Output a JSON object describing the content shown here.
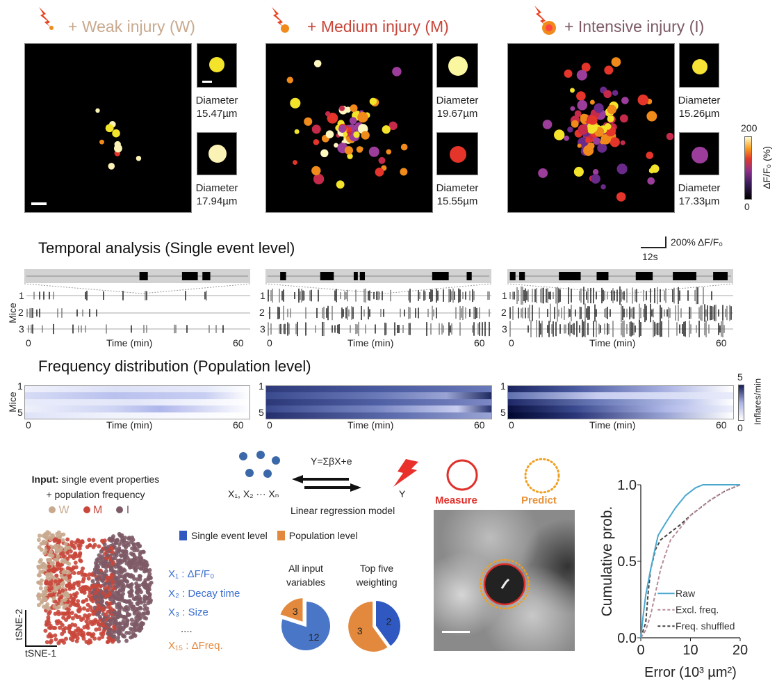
{
  "injuries": [
    {
      "label": "+ Weak injury (W)",
      "color": "#c8a98e",
      "thumbs": [
        {
          "caption": "Diameter",
          "value": "15.47µm"
        },
        {
          "caption": "Diameter",
          "value": "17.94µm"
        }
      ]
    },
    {
      "label": "+ Medium injury (M)",
      "color": "#c9463a",
      "thumbs": [
        {
          "caption": "Diameter",
          "value": "19.67µm"
        },
        {
          "caption": "Diameter",
          "value": "15.55µm"
        }
      ]
    },
    {
      "label": "+ Intensive injury (I)",
      "color": "#7d5a66",
      "thumbs": [
        {
          "caption": "Diameter",
          "value": "15.26µm"
        },
        {
          "caption": "Diameter",
          "value": "17.33µm"
        }
      ]
    }
  ],
  "colorbar_top": {
    "max": "200",
    "min": "0",
    "label": "ΔF/F₀ (%)"
  },
  "temporal": {
    "title": "Temporal analysis (Single event level)",
    "scale_y": "200% ΔF/F₀",
    "scale_x": "12s",
    "ylabel": "Mice",
    "rows": [
      "1",
      "2",
      "3"
    ],
    "x_start": "0",
    "x_label": "Time (min)",
    "x_end": "60"
  },
  "frequency": {
    "title": "Frequency distribution (Population level)",
    "ylabel": "Mice",
    "rows": [
      "1",
      "5"
    ],
    "x_start": "0",
    "x_label": "Time (min)",
    "x_end": "60",
    "colorbar": {
      "max": "5",
      "min": "0",
      "label": "Inflares/min"
    }
  },
  "tsne": {
    "input_bold": "Input:",
    "input_rest": " single event properties",
    "input_line2": "+ population frequency",
    "legend": [
      {
        "label": "W",
        "color": "#c8a98e"
      },
      {
        "label": "M",
        "color": "#c9463a"
      },
      {
        "label": "I",
        "color": "#7d5a66"
      }
    ],
    "xlabel": "tSNE-1",
    "ylabel": "tSNE-2"
  },
  "regression": {
    "equation": "Y=ΣβX+e",
    "inputs": "X₁, X₂ ··· Xₙ",
    "output": "Y",
    "caption": "Linear regression model",
    "legend": [
      {
        "label": "Single event level",
        "color": "#2f59c0"
      },
      {
        "label": "Population level",
        "color": "#e3893e"
      }
    ],
    "variables": [
      {
        "text": "X₁ : ΔF/F₀",
        "color": "#3a6fd0"
      },
      {
        "text": "X₂ : Decay time",
        "color": "#3a6fd0"
      },
      {
        "text": "X₃ : Size",
        "color": "#3a6fd0"
      },
      {
        "text": "....",
        "color": "#333"
      },
      {
        "text": "X₁₅ : ΔFreq.",
        "color": "#e3893e"
      }
    ]
  },
  "measure_predict": {
    "measure": "Measure",
    "predict": "Predict",
    "measure_color": "#e0302a",
    "predict_color": "#f0a020"
  },
  "chart_data": [
    {
      "type": "pie",
      "title": "All input variables",
      "slices": [
        {
          "label": "Single event level",
          "value": 12,
          "color": "#4a76c8"
        },
        {
          "label": "Population level",
          "value": 3,
          "color": "#e3893e"
        }
      ]
    },
    {
      "type": "pie",
      "title": "Top five weighting",
      "slices": [
        {
          "label": "Single event level",
          "value": 2,
          "color": "#2f59c0"
        },
        {
          "label": "Population level",
          "value": 3,
          "color": "#e3893e"
        }
      ]
    },
    {
      "type": "line",
      "title": "",
      "xlabel": "Error (10³ µm²)",
      "ylabel": "Cumulative prob.",
      "xlim": [
        0,
        20
      ],
      "ylim": [
        0,
        1
      ],
      "xticks": [
        "0",
        "10",
        "20"
      ],
      "yticks": [
        "0.0",
        "0.5",
        "1.0"
      ],
      "legend_position": "bottom-right",
      "grid": false,
      "series": [
        {
          "name": "Raw",
          "color": "#4aa8cf",
          "dash": false,
          "x": [
            0,
            0.5,
            1,
            2,
            3,
            3.5,
            5,
            7,
            9,
            11,
            12.5,
            20
          ],
          "y": [
            0,
            0.15,
            0.28,
            0.45,
            0.6,
            0.67,
            0.75,
            0.85,
            0.93,
            0.98,
            1,
            1
          ]
        },
        {
          "name": "Excl. freq.",
          "color": "#b68a96",
          "dash": true,
          "x": [
            0,
            1,
            2,
            3,
            4,
            5,
            6,
            8,
            10,
            14,
            17,
            20
          ],
          "y": [
            0,
            0.05,
            0.15,
            0.3,
            0.45,
            0.55,
            0.64,
            0.72,
            0.8,
            0.9,
            0.96,
            1
          ]
        },
        {
          "name": "Freq. shuffled",
          "color": "#444",
          "dash": true,
          "x": [
            0,
            1,
            1.5,
            2,
            3,
            4,
            6,
            8,
            10,
            14,
            17,
            20
          ],
          "y": [
            0,
            0.1,
            0.3,
            0.45,
            0.58,
            0.64,
            0.69,
            0.74,
            0.8,
            0.9,
            0.96,
            1
          ]
        }
      ]
    }
  ]
}
